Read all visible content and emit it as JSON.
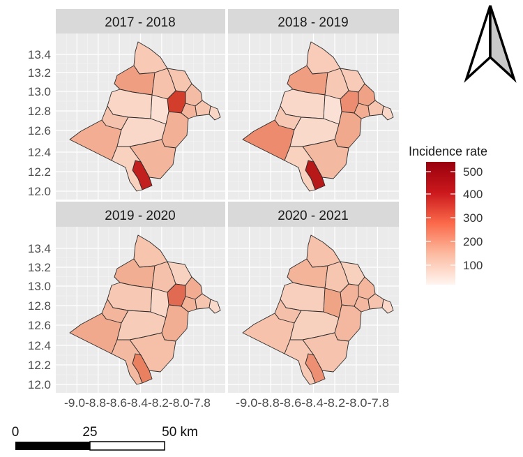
{
  "panels": [
    {
      "title": "2017 - 2018",
      "fills": {
        "north": "#f8c9b5",
        "nw": "#ef9e82",
        "nc": "#f6c2ac",
        "ne": "#f6c6b1",
        "east": "#f4bca5",
        "hot": "#d33d2c",
        "ec": "#f3b49b",
        "ee": "#f5c5af",
        "tail": "#f8d5c5",
        "west": "#f9d6c6",
        "center": "#fbe0d3",
        "mw": "#f5c3ad",
        "ws": "#f2ad92",
        "sc": "#f9d8c9",
        "se": "#f2b196",
        "south": "#f3b69d",
        "spike": "#c21f1f",
        "ssw": "#f8d1bf"
      }
    },
    {
      "title": "2018 - 2019",
      "fills": {
        "north": "#f8ccb9",
        "nw": "#ef9e82",
        "nc": "#f7c8b3",
        "ne": "#f7cbb7",
        "east": "#f0a286",
        "hot": "#ec8d71",
        "ec": "#f2ad92",
        "ee": "#f6c6b1",
        "tail": "#f8d7c8",
        "west": "#f9d8c9",
        "center": "#fbe1d5",
        "mw": "#f7c8b3",
        "ws": "#ec8b6d",
        "sc": "#f9d9ca",
        "se": "#f1a98e",
        "south": "#f4b9a1",
        "spike": "#b71818",
        "ssw": "#f8d1bf"
      }
    },
    {
      "title": "2019 - 2020",
      "fills": {
        "north": "#f7c4ae",
        "nw": "#f2ae93",
        "nc": "#f6c1ab",
        "ne": "#f8d2c1",
        "east": "#f2ac91",
        "hot": "#e06a52",
        "ec": "#f3b399",
        "ee": "#f5c5af",
        "tail": "#f9d9ca",
        "west": "#f7c8b3",
        "center": "#f9d6c6",
        "mw": "#f3b59c",
        "ws": "#f1a98e",
        "sc": "#f7ccb8",
        "se": "#f2ae93",
        "south": "#f5bfa8",
        "spike": "#e9805f",
        "ssw": "#f4b9a1"
      }
    },
    {
      "title": "2020 - 2021",
      "fills": {
        "north": "#f6c2ab",
        "nw": "#f3b49a",
        "nc": "#f7c6b0",
        "ne": "#f8d0be",
        "east": "#f4b79e",
        "hot": "#f3b39a",
        "ec": "#f4b8a0",
        "ee": "#f6c4ae",
        "tail": "#f9d8c9",
        "west": "#f8cfbc",
        "center": "#f0a486",
        "mw": "#f5c0aa",
        "ws": "#f6c2ab",
        "sc": "#f8d0be",
        "se": "#f4b8a0",
        "south": "#f6c4ae",
        "spike": "#ec8f72",
        "ssw": "#f7c8b3"
      }
    }
  ],
  "axes": {
    "y_ticks": [
      "13.4",
      "13.2",
      "13.0",
      "12.8",
      "12.6",
      "12.4",
      "12.2",
      "12.0"
    ],
    "x_ticks": [
      "-9.0",
      "-8.8",
      "-8.6",
      "-8.4",
      "-8.2",
      "-8.0",
      "-7.8"
    ],
    "x_tick_row_label": "-9.0-8.8-8.6-8.4-8.2-8.0-7.8"
  },
  "legend": {
    "title": "Incidence rate",
    "ticks": [
      "500",
      "400",
      "300",
      "200",
      "100"
    ],
    "colors": [
      "#fff5f0",
      "#fcbba1",
      "#fb6a4a",
      "#cb181d",
      "#99000d"
    ]
  },
  "scale_bar": {
    "labels": [
      "0",
      "25",
      "50 km"
    ]
  },
  "north_arrow": {
    "icon": "north-arrow-icon"
  },
  "colors": {
    "panel_bg": "#ebebeb",
    "strip_bg": "#d9d9d9",
    "border": "#2b2b2b"
  }
}
